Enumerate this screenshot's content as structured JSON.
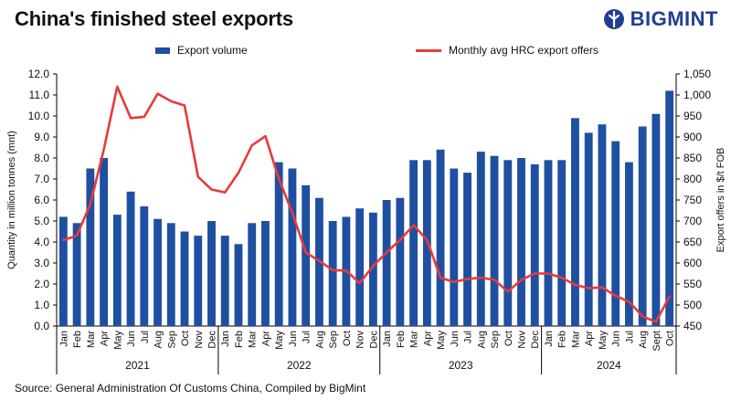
{
  "header": {
    "title": "China's finished steel exports",
    "logo_text": "BIGMINT"
  },
  "source": "Source: General Administration Of Customs China, Compiled by BigMint",
  "colors": {
    "bar": "#1f4fa0",
    "line": "#e83a3a",
    "logo": "#1f3f93"
  },
  "chart_data": {
    "type": "bar+line",
    "xlabel": "",
    "ylabel_left": "Quantity in million tonnes (mnt)",
    "ylabel_right": "Export offers in $/t FOB",
    "ylim_left": [
      0,
      12
    ],
    "ylim_right": [
      450,
      1050
    ],
    "left_ticks": [
      "0.0",
      "1.0",
      "2.0",
      "3.0",
      "4.0",
      "5.0",
      "6.0",
      "7.0",
      "8.0",
      "9.0",
      "10.0",
      "11.0",
      "12.0"
    ],
    "right_ticks": [
      "450",
      "500",
      "550",
      "600",
      "650",
      "700",
      "750",
      "800",
      "850",
      "900",
      "950",
      "1,000",
      "1,050"
    ],
    "legend_position": "top",
    "years": [
      {
        "label": "2021",
        "months": 12
      },
      {
        "label": "2022",
        "months": 12
      },
      {
        "label": "2023",
        "months": 12
      },
      {
        "label": "2024",
        "months": 10
      }
    ],
    "categories": [
      "Jan",
      "Feb",
      "Mar",
      "Apr",
      "May",
      "Jun",
      "Jul",
      "Aug",
      "Sep",
      "Oct",
      "Nov",
      "Dec",
      "Jan",
      "Feb",
      "Mar",
      "Apr",
      "May",
      "Jun",
      "Jul",
      "Aug",
      "Sep",
      "Oct",
      "Nov",
      "Dec",
      "Jan",
      "Feb",
      "Mar",
      "Apr",
      "May",
      "Jun",
      "Jul",
      "Aug",
      "Sep",
      "Oct",
      "Nov",
      "Dec",
      "Jan",
      "Feb",
      "Mar",
      "Apr",
      "May",
      "Jun",
      "Jul",
      "Aug",
      "Sept",
      "Oct"
    ],
    "series": [
      {
        "name": "Export volume",
        "type": "bar",
        "axis": "left",
        "values": [
          5.2,
          4.9,
          7.5,
          8.0,
          5.3,
          6.4,
          5.7,
          5.1,
          4.9,
          4.5,
          4.3,
          5.0,
          4.3,
          3.9,
          4.9,
          5.0,
          7.8,
          7.5,
          6.7,
          6.1,
          5.0,
          5.2,
          5.6,
          5.4,
          6.0,
          6.1,
          7.9,
          7.9,
          8.4,
          7.5,
          7.3,
          8.3,
          8.1,
          7.9,
          8.0,
          7.7,
          7.9,
          7.9,
          9.9,
          9.2,
          9.6,
          8.8,
          7.8,
          9.5,
          10.1,
          11.2
        ]
      },
      {
        "name": "Monthly avg HRC export offers",
        "type": "line",
        "axis": "right",
        "values": [
          655,
          665,
          740,
          870,
          1020,
          945,
          948,
          1003,
          985,
          975,
          805,
          775,
          768,
          815,
          880,
          902,
          800,
          720,
          625,
          605,
          583,
          582,
          552,
          593,
          625,
          655,
          690,
          655,
          565,
          555,
          562,
          565,
          560,
          532,
          560,
          575,
          575,
          565,
          548,
          540,
          542,
          522,
          508,
          473,
          460,
          520
        ]
      }
    ]
  }
}
